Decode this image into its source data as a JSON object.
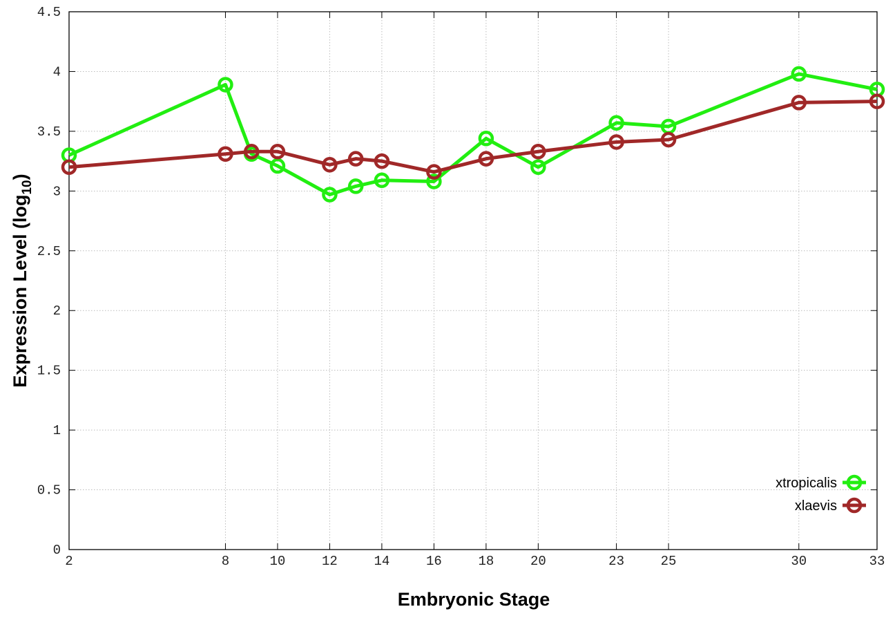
{
  "chart_data": {
    "type": "line",
    "title": "",
    "xlabel": "Embryonic Stage",
    "ylabel": "Expression Level (log",
    "ylabel_subscript": "10",
    "ylabel_close": ")",
    "x": [
      2,
      8,
      9,
      10,
      12,
      13,
      14,
      16,
      18,
      20,
      23,
      25,
      30,
      33
    ],
    "xticks": [
      "2",
      "8",
      "10",
      "12",
      "14",
      "16",
      "18",
      "20",
      "23",
      "25",
      "30",
      "33"
    ],
    "xtick_values": [
      2,
      8,
      10,
      12,
      14,
      16,
      18,
      20,
      23,
      25,
      30,
      33
    ],
    "yticks": [
      "0",
      "0.5",
      "1",
      "1.5",
      "2",
      "2.5",
      "3",
      "3.5",
      "4",
      "4.5"
    ],
    "ytick_values": [
      0,
      0.5,
      1,
      1.5,
      2,
      2.5,
      3,
      3.5,
      4,
      4.5
    ],
    "xlim": [
      2,
      33
    ],
    "ylim": [
      0,
      4.5
    ],
    "grid": true,
    "legend_placement": "bottom-right",
    "series": [
      {
        "name": "xtropicalis",
        "color": "#22ee11",
        "values": [
          3.3,
          3.89,
          3.31,
          3.21,
          2.97,
          3.04,
          3.09,
          3.08,
          3.44,
          3.2,
          3.57,
          3.54,
          3.98,
          3.85
        ]
      },
      {
        "name": "xlaevis",
        "color": "#a02828",
        "values": [
          3.2,
          3.31,
          3.33,
          3.33,
          3.22,
          3.27,
          3.25,
          3.16,
          3.27,
          3.33,
          3.41,
          3.43,
          3.74,
          3.75
        ]
      }
    ]
  }
}
